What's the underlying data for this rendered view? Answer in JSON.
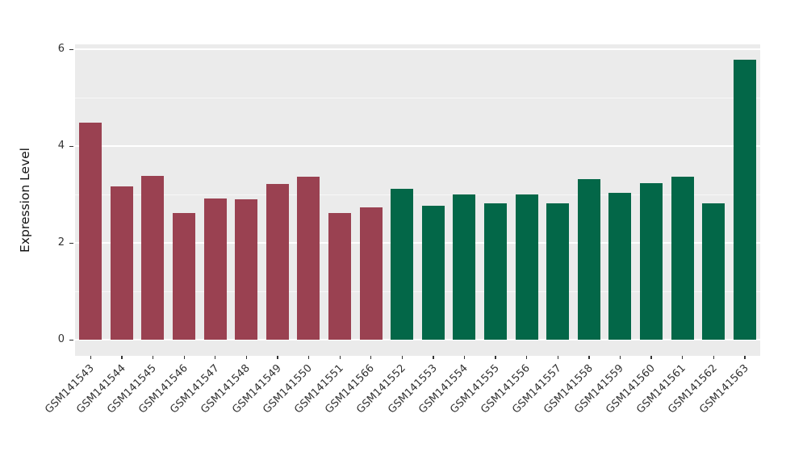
{
  "figure": {
    "background": "#ffffff",
    "panel_background": "#EBEBEB",
    "gridline_color": "#FFFFFF",
    "axis_text_color": "#333333",
    "axis_title_color": "#111111",
    "tick_mark_color": "#333333"
  },
  "chart_data": {
    "type": "bar",
    "title": "",
    "xlabel": "",
    "ylabel": "Expression Level",
    "categories": [
      "GSM141543",
      "GSM141544",
      "GSM141545",
      "GSM141546",
      "GSM141547",
      "GSM141548",
      "GSM141549",
      "GSM141550",
      "GSM141551",
      "GSM141566",
      "GSM141552",
      "GSM141553",
      "GSM141554",
      "GSM141555",
      "GSM141556",
      "GSM141557",
      "GSM141558",
      "GSM141559",
      "GSM141560",
      "GSM141561",
      "GSM141562",
      "GSM141563"
    ],
    "values": [
      4.48,
      3.16,
      3.38,
      2.62,
      2.92,
      2.9,
      3.22,
      3.36,
      2.62,
      2.74,
      3.11,
      2.76,
      3.0,
      2.82,
      3.0,
      2.82,
      3.32,
      3.03,
      3.23,
      3.37,
      2.81,
      5.79
    ],
    "bar_colors": [
      "#9A4151",
      "#9A4151",
      "#9A4151",
      "#9A4151",
      "#9A4151",
      "#9A4151",
      "#9A4151",
      "#9A4151",
      "#9A4151",
      "#9A4151",
      "#036748",
      "#036748",
      "#036748",
      "#036748",
      "#036748",
      "#036748",
      "#036748",
      "#036748",
      "#036748",
      "#036748",
      "#036748",
      "#036748"
    ],
    "group_palette": {
      "red_group": "#9A4151",
      "green_group": "#036748"
    },
    "ylim": [
      0,
      6.1
    ],
    "yticks": [
      0,
      2,
      4,
      6
    ],
    "yticks_minor": [
      1,
      3,
      5
    ],
    "grid": true,
    "legend": "none",
    "x_tick_rotation_deg": 45
  }
}
